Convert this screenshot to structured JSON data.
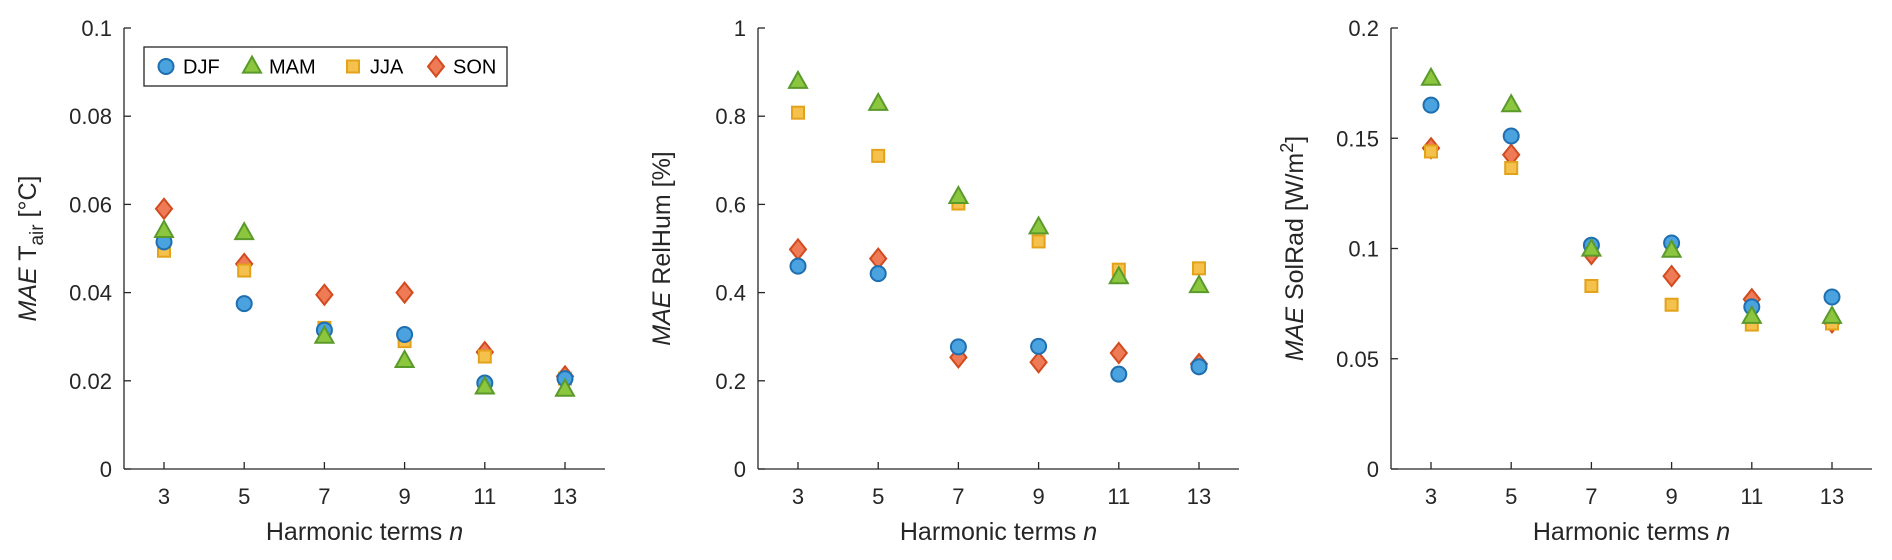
{
  "colors": {
    "DJF": "#4aa3df",
    "MAM": "#8cc63f",
    "JJA": "#f5c14d",
    "SON": "#ee7b55"
  },
  "stroke_colors": {
    "DJF": "#1f6fb0",
    "MAM": "#5a9a2a",
    "JJA": "#e3a21a",
    "SON": "#d14b1f"
  },
  "legend": [
    "DJF",
    "MAM",
    "JJA",
    "SON"
  ],
  "chart_data": [
    {
      "type": "scatter",
      "ylabel_italic": "MAE",
      "ylabel_text": " T",
      "ylabel_sub": "air",
      "ylabel_sup": "",
      "ylabel_after": " [°C]",
      "xlabel": "Harmonic terms ",
      "xlabel_italic": "n",
      "ylim": [
        0,
        0.1
      ],
      "yticks": [
        0,
        0.02,
        0.04,
        0.06,
        0.08,
        0.1
      ],
      "ytick_labels": [
        "0",
        "0.02",
        "0.04",
        "0.06",
        "0.08",
        "0.1"
      ],
      "x": [
        3,
        5,
        7,
        9,
        11,
        13
      ],
      "xtick_labels": [
        "3",
        "5",
        "7",
        "9",
        "11",
        "13"
      ],
      "legend_placement": "top-left",
      "series": [
        {
          "name": "DJF",
          "values": [
            0.0515,
            0.0375,
            0.0315,
            0.0305,
            0.0195,
            0.0205
          ]
        },
        {
          "name": "MAM",
          "values": [
            0.054,
            0.0535,
            0.03,
            0.0245,
            0.0185,
            0.018
          ]
        },
        {
          "name": "JJA",
          "values": [
            0.0495,
            0.045,
            0.032,
            0.029,
            0.0255,
            0.0205
          ]
        },
        {
          "name": "SON",
          "values": [
            0.059,
            0.0465,
            0.0395,
            0.04,
            0.0265,
            0.021
          ]
        }
      ]
    },
    {
      "type": "scatter",
      "ylabel_italic": "MAE",
      "ylabel_text": " RelHum [%]",
      "ylabel_sub": "",
      "ylabel_sup": "",
      "ylabel_after": "",
      "xlabel": "Harmonic terms ",
      "xlabel_italic": "n",
      "ylim": [
        0,
        1
      ],
      "yticks": [
        0,
        0.2,
        0.4,
        0.6,
        0.8,
        1
      ],
      "ytick_labels": [
        "0",
        "0.2",
        "0.4",
        "0.6",
        "0.8",
        "1"
      ],
      "x": [
        3,
        5,
        7,
        9,
        11,
        13
      ],
      "xtick_labels": [
        "3",
        "5",
        "7",
        "9",
        "11",
        "13"
      ],
      "series": [
        {
          "name": "DJF",
          "values": [
            0.46,
            0.443,
            0.277,
            0.278,
            0.215,
            0.232
          ]
        },
        {
          "name": "MAM",
          "values": [
            0.878,
            0.828,
            0.617,
            0.548,
            0.435,
            0.415
          ]
        },
        {
          "name": "JJA",
          "values": [
            0.808,
            0.71,
            0.602,
            0.516,
            0.452,
            0.455
          ]
        },
        {
          "name": "SON",
          "values": [
            0.498,
            0.477,
            0.253,
            0.242,
            0.263,
            0.238
          ]
        }
      ]
    },
    {
      "type": "scatter",
      "ylabel_italic": "MAE",
      "ylabel_text": " SolRad [W/m",
      "ylabel_sub": "",
      "ylabel_sup": "2",
      "ylabel_after": "]",
      "xlabel": "Harmonic terms ",
      "xlabel_italic": "n",
      "ylim": [
        0,
        0.2
      ],
      "yticks": [
        0,
        0.05,
        0.1,
        0.15,
        0.2
      ],
      "ytick_labels": [
        "0",
        "0.05",
        "0.1",
        "0.15",
        "0.2"
      ],
      "x": [
        3,
        5,
        7,
        9,
        11,
        13
      ],
      "xtick_labels": [
        "3",
        "5",
        "7",
        "9",
        "11",
        "13"
      ],
      "series": [
        {
          "name": "DJF",
          "values": [
            0.165,
            0.151,
            0.1015,
            0.1025,
            0.0735,
            0.078
          ]
        },
        {
          "name": "MAM",
          "values": [
            0.177,
            0.165,
            0.0995,
            0.099,
            0.069,
            0.069
          ]
        },
        {
          "name": "JJA",
          "values": [
            0.144,
            0.1365,
            0.083,
            0.0745,
            0.0655,
            0.066
          ]
        },
        {
          "name": "SON",
          "values": [
            0.1455,
            0.1425,
            0.0975,
            0.0875,
            0.077,
            0.0665
          ]
        }
      ]
    }
  ]
}
